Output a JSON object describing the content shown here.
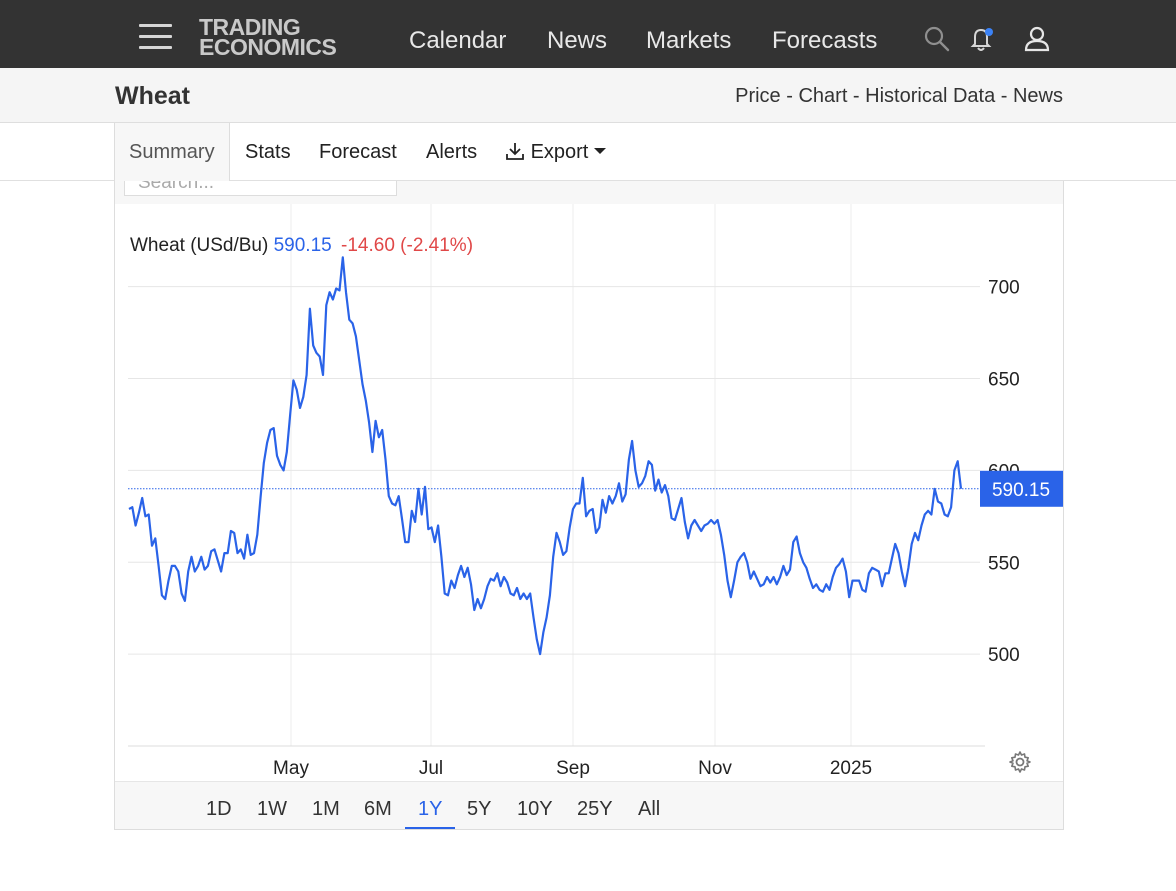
{
  "nav": {
    "logo_line1": "TRADING",
    "logo_line2": "ECONOMICS",
    "links": [
      "Calendar",
      "News",
      "Markets",
      "Forecasts"
    ],
    "icons": [
      "menu-icon",
      "search-icon",
      "bell-icon",
      "user-icon"
    ]
  },
  "page": {
    "title": "Wheat",
    "crumbs": [
      "Price",
      "Chart",
      "Historical Data",
      "News"
    ],
    "crumb_sep": " - "
  },
  "tabs": [
    "Summary",
    "Stats",
    "Forecast",
    "Alerts",
    "Export"
  ],
  "toolbar": {
    "search_placeholder": "Search..."
  },
  "legend": {
    "name": "Wheat (USd/Bu)",
    "last": "590.15",
    "change": "-14.60 (-2.41%)"
  },
  "ranges": [
    "1D",
    "1W",
    "1M",
    "6M",
    "1Y",
    "5Y",
    "10Y",
    "25Y",
    "All"
  ],
  "active_range": "1Y",
  "colors": {
    "line": "#2a63e8",
    "negative": "#e04848",
    "nav_bg": "#333333"
  },
  "chart_data": {
    "type": "line",
    "series": [
      {
        "name": "Wheat (USd/Bu)",
        "values": [
          579,
          580,
          570,
          577,
          585,
          575,
          576,
          559,
          563,
          548,
          532,
          530,
          540,
          548,
          548,
          545,
          533,
          529,
          545,
          553,
          545,
          548,
          553,
          546,
          548,
          556,
          557,
          551,
          545,
          555,
          555,
          567,
          566,
          555,
          557,
          552,
          565,
          554,
          555,
          565,
          585,
          604,
          615,
          622,
          623,
          608,
          603,
          600,
          610,
          630,
          649,
          644,
          634,
          640,
          652,
          688,
          668,
          664,
          662,
          652,
          690,
          697,
          693,
          699,
          698,
          716,
          697,
          682,
          680,
          673,
          660,
          647,
          638,
          626,
          610,
          627,
          618,
          622,
          606,
          586,
          582,
          581,
          586,
          574,
          561,
          561,
          578,
          572,
          590,
          576,
          591,
          568,
          569,
          561,
          570,
          553,
          533,
          532,
          540,
          536,
          543,
          548,
          542,
          547,
          538,
          524,
          530,
          525,
          530,
          537,
          541,
          540,
          544,
          537,
          542,
          539,
          533,
          532,
          536,
          530,
          533,
          530,
          533,
          520,
          508,
          500,
          512,
          520,
          532,
          553,
          566,
          561,
          554,
          556,
          569,
          579,
          582,
          582,
          596,
          575,
          578,
          579,
          566,
          569,
          584,
          577,
          586,
          582,
          586,
          593,
          583,
          587,
          606,
          616,
          600,
          591,
          593,
          597,
          605,
          603,
          589,
          595,
          588,
          592,
          586,
          574,
          573,
          579,
          585,
          572,
          563,
          570,
          573,
          570,
          567,
          570,
          571,
          573,
          571,
          573,
          565,
          554,
          540,
          531,
          540,
          550,
          553,
          555,
          550,
          541,
          545,
          541,
          537,
          538,
          542,
          539,
          542,
          538,
          542,
          548,
          543,
          546,
          561,
          564,
          555,
          550,
          547,
          541,
          536,
          538,
          535,
          534,
          538,
          535,
          542,
          547,
          549,
          552,
          545,
          531,
          540,
          540,
          540,
          535,
          534,
          544,
          547,
          546,
          545,
          537,
          544,
          544,
          552,
          560,
          555,
          545,
          537,
          547,
          560,
          566,
          562,
          570,
          576,
          578,
          576,
          590,
          583,
          582,
          576,
          575,
          580,
          600,
          605,
          590
        ]
      }
    ],
    "x_ticks": [
      "May",
      "Jul",
      "Sep",
      "Nov",
      "2025"
    ],
    "y_ticks": [
      500,
      550,
      600,
      650,
      700
    ],
    "ylim": [
      450,
      745
    ],
    "last_value": "590.15",
    "grid": true
  }
}
